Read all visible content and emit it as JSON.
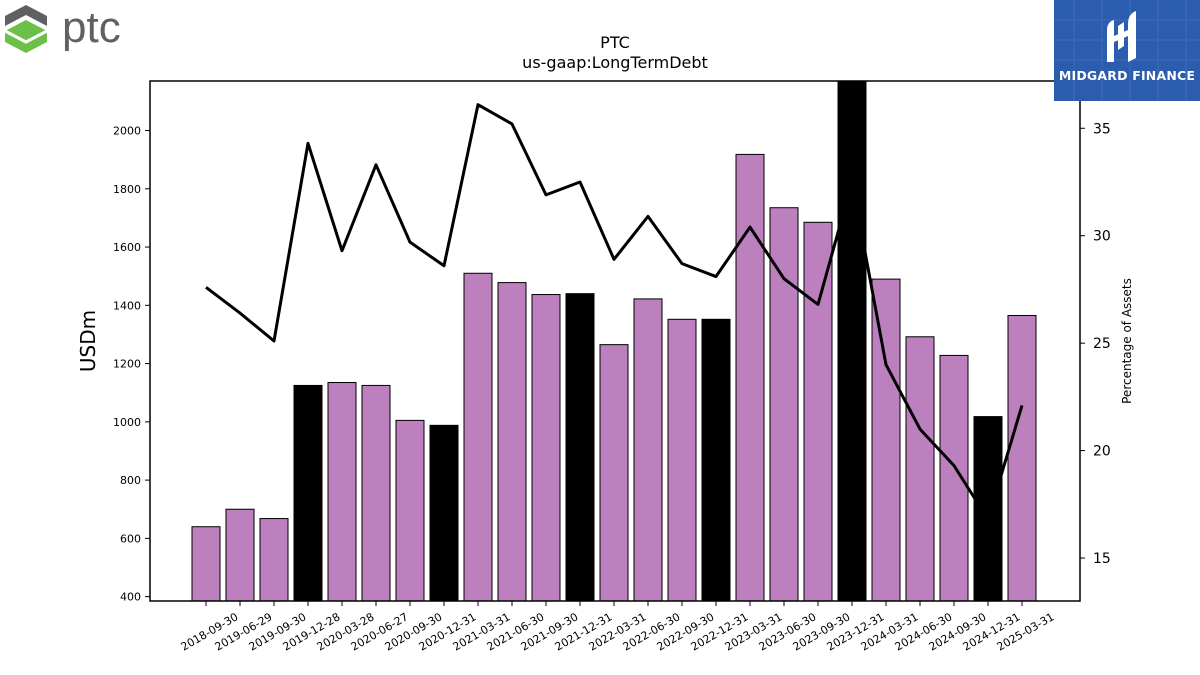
{
  "branding": {
    "company_wordmark": "ptc",
    "partner_name": "MIDGARD FINANCE"
  },
  "colors": {
    "bar_normal": "#bb80bd",
    "bar_highlight": "#000000",
    "line": "#000000",
    "ptc_logo_green": "#6cc04a",
    "ptc_logo_gray": "#5f6062",
    "midgard_bg": "#2b5cad"
  },
  "chart_data": {
    "type": "bar",
    "title": "PTC",
    "subtitle": "us-gaap:LongTermDebt",
    "ylabel": "USDm",
    "y2label": "Percentage of Assets",
    "ylim": [
      385,
      2170
    ],
    "y2lim": [
      13,
      37.2
    ],
    "yticks": [
      400,
      600,
      800,
      1000,
      1200,
      1400,
      1600,
      1800,
      2000
    ],
    "y2ticks": [
      15,
      20,
      25,
      30,
      35
    ],
    "categories": [
      "2018-09-30",
      "2019-06-29",
      "2019-09-30",
      "2019-12-28",
      "2020-03-28",
      "2020-06-27",
      "2020-09-30",
      "2020-12-31",
      "2021-03-31",
      "2021-06-30",
      "2021-09-30",
      "2021-12-31",
      "2022-03-31",
      "2022-06-30",
      "2022-09-30",
      "2022-12-31",
      "2023-03-31",
      "2023-06-30",
      "2023-09-30",
      "2023-12-31",
      "2024-03-31",
      "2024-06-30",
      "2024-09-30",
      "2024-12-31",
      "2025-03-31"
    ],
    "series": [
      {
        "type": "bar",
        "values": [
          640,
          700,
          668,
          1125,
          1135,
          1125,
          1005,
          988,
          1510,
          1478,
          1437,
          1440,
          1265,
          1422,
          1352,
          1352,
          1918,
          1735,
          1685,
          2180,
          1490,
          1292,
          1228,
          1018,
          1365
        ],
        "highlight": [
          false,
          false,
          false,
          true,
          false,
          false,
          false,
          true,
          false,
          false,
          false,
          true,
          false,
          false,
          false,
          true,
          false,
          false,
          false,
          true,
          false,
          false,
          false,
          true,
          false
        ]
      },
      {
        "type": "line",
        "axis": "right",
        "values": [
          27.6,
          26.4,
          25.1,
          34.3,
          29.3,
          33.3,
          29.7,
          28.6,
          36.1,
          35.2,
          31.9,
          32.5,
          28.9,
          30.9,
          28.7,
          28.1,
          30.4,
          28.0,
          26.8,
          32.5,
          24.0,
          21.0,
          19.3,
          16.8,
          22.1
        ]
      }
    ],
    "grid": false,
    "legend": "none"
  }
}
